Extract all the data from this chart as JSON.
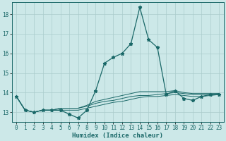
{
  "xlabel": "Humidex (Indice chaleur)",
  "ylabel": "",
  "bg_color": "#cce8e8",
  "grid_color": "#aacccc",
  "line_color": "#1a6868",
  "xlim": [
    -0.5,
    23.5
  ],
  "ylim": [
    12.5,
    18.6
  ],
  "yticks": [
    13,
    14,
    15,
    16,
    17,
    18
  ],
  "xticks": [
    0,
    1,
    2,
    3,
    4,
    5,
    6,
    7,
    8,
    9,
    10,
    11,
    12,
    13,
    14,
    15,
    16,
    17,
    18,
    19,
    20,
    21,
    22,
    23
  ],
  "series": [
    [
      13.8,
      13.1,
      13.0,
      13.1,
      13.1,
      13.1,
      12.9,
      12.7,
      13.1,
      14.1,
      15.5,
      15.8,
      16.0,
      16.5,
      18.35,
      16.7,
      16.3,
      13.9,
      14.1,
      13.7,
      13.6,
      13.8,
      13.9,
      13.9
    ],
    [
      13.8,
      13.1,
      13.0,
      13.1,
      13.1,
      13.1,
      13.1,
      13.1,
      13.2,
      13.3,
      13.4,
      13.5,
      13.55,
      13.65,
      13.75,
      13.8,
      13.8,
      13.85,
      13.9,
      13.85,
      13.8,
      13.8,
      13.85,
      13.9
    ],
    [
      13.8,
      13.1,
      13.0,
      13.1,
      13.1,
      13.2,
      13.2,
      13.2,
      13.3,
      13.45,
      13.55,
      13.6,
      13.7,
      13.8,
      13.85,
      13.85,
      13.9,
      13.95,
      14.0,
      13.95,
      13.9,
      13.9,
      13.9,
      13.95
    ],
    [
      13.8,
      13.1,
      13.0,
      13.1,
      13.1,
      13.2,
      13.2,
      13.2,
      13.35,
      13.55,
      13.65,
      13.75,
      13.85,
      13.95,
      14.05,
      14.05,
      14.05,
      14.05,
      14.1,
      14.0,
      13.95,
      13.95,
      13.95,
      13.95
    ]
  ],
  "xlabel_fontsize": 6.5,
  "tick_fontsize": 5.5
}
